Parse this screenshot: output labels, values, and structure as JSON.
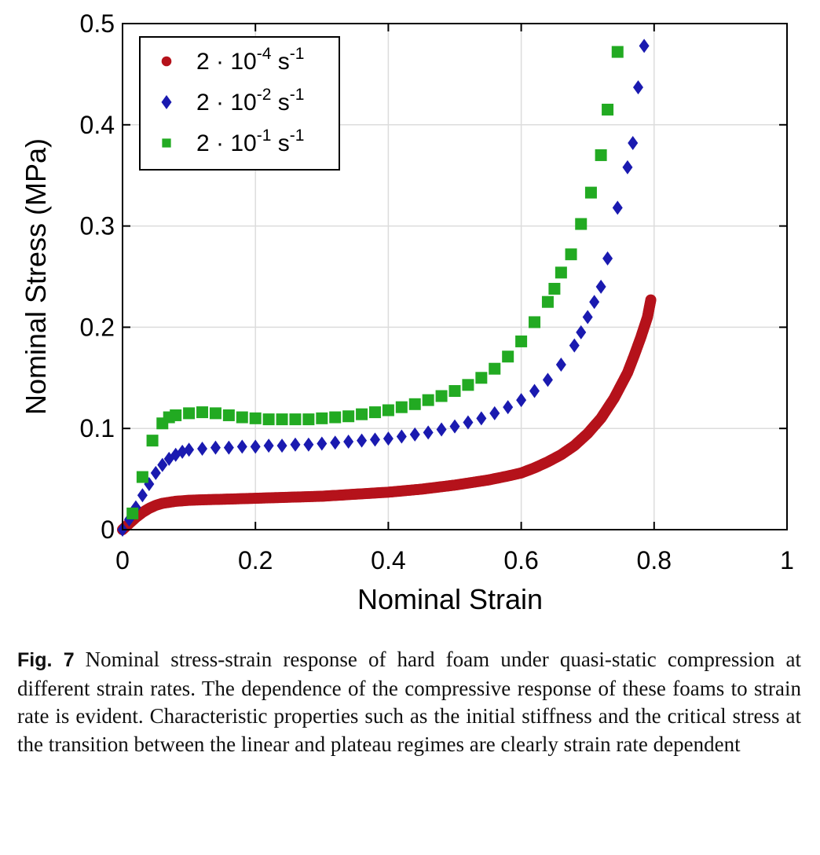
{
  "chart_data": {
    "type": "scatter",
    "title": "",
    "xlabel": "Nominal Strain",
    "ylabel": "Nominal Stress (MPa)",
    "xlim": [
      0,
      1
    ],
    "ylim": [
      0,
      0.5
    ],
    "xticks": [
      "0",
      "0.2",
      "0.4",
      "0.6",
      "0.8",
      "1"
    ],
    "yticks": [
      "0",
      "0.1",
      "0.2",
      "0.3",
      "0.4",
      "0.5"
    ],
    "grid": true,
    "legend_position": "top-left",
    "series": [
      {
        "name": "2 · 10-4 s-1",
        "base": "2 · 10",
        "exp": "-4",
        "unit": "s",
        "unit_exp": "-1",
        "marker": "circle",
        "color": "#b5121b",
        "x": [
          0.0,
          0.01,
          0.02,
          0.03,
          0.04,
          0.05,
          0.06,
          0.08,
          0.1,
          0.12,
          0.15,
          0.2,
          0.25,
          0.3,
          0.35,
          0.4,
          0.45,
          0.5,
          0.55,
          0.58,
          0.6,
          0.62,
          0.64,
          0.66,
          0.68,
          0.7,
          0.72,
          0.74,
          0.76,
          0.77,
          0.78,
          0.79,
          0.795
        ],
        "y": [
          0.0,
          0.006,
          0.012,
          0.017,
          0.021,
          0.024,
          0.026,
          0.028,
          0.029,
          0.0295,
          0.03,
          0.031,
          0.032,
          0.033,
          0.035,
          0.037,
          0.04,
          0.044,
          0.049,
          0.053,
          0.056,
          0.061,
          0.067,
          0.074,
          0.083,
          0.095,
          0.11,
          0.13,
          0.155,
          0.172,
          0.19,
          0.21,
          0.227
        ]
      },
      {
        "name": "2 · 10-2 s-1",
        "base": "2 · 10",
        "exp": "-2",
        "unit": "s",
        "unit_exp": "-1",
        "marker": "diamond",
        "color": "#1a1ab0",
        "x": [
          0.0,
          0.01,
          0.02,
          0.03,
          0.04,
          0.05,
          0.06,
          0.07,
          0.08,
          0.09,
          0.1,
          0.12,
          0.14,
          0.16,
          0.18,
          0.2,
          0.22,
          0.24,
          0.26,
          0.28,
          0.3,
          0.32,
          0.34,
          0.36,
          0.38,
          0.4,
          0.42,
          0.44,
          0.46,
          0.48,
          0.5,
          0.52,
          0.54,
          0.56,
          0.58,
          0.6,
          0.62,
          0.64,
          0.66,
          0.68,
          0.69,
          0.7,
          0.71,
          0.72,
          0.73,
          0.745,
          0.76,
          0.768,
          0.776,
          0.785
        ],
        "y": [
          0.0,
          0.01,
          0.022,
          0.034,
          0.045,
          0.056,
          0.064,
          0.07,
          0.074,
          0.077,
          0.079,
          0.08,
          0.081,
          0.081,
          0.082,
          0.082,
          0.083,
          0.083,
          0.084,
          0.084,
          0.085,
          0.086,
          0.087,
          0.088,
          0.089,
          0.09,
          0.092,
          0.094,
          0.096,
          0.099,
          0.102,
          0.106,
          0.11,
          0.115,
          0.121,
          0.128,
          0.137,
          0.148,
          0.163,
          0.182,
          0.195,
          0.21,
          0.225,
          0.24,
          0.268,
          0.318,
          0.358,
          0.382,
          0.437,
          0.478
        ]
      },
      {
        "name": "2 · 10-1 s-1",
        "base": "2 · 10",
        "exp": "-1",
        "unit": "s",
        "unit_exp": "-1",
        "marker": "square",
        "color": "#22aa22",
        "x": [
          0.015,
          0.03,
          0.045,
          0.06,
          0.07,
          0.08,
          0.1,
          0.12,
          0.14,
          0.16,
          0.18,
          0.2,
          0.22,
          0.24,
          0.26,
          0.28,
          0.3,
          0.32,
          0.34,
          0.36,
          0.38,
          0.4,
          0.42,
          0.44,
          0.46,
          0.48,
          0.5,
          0.52,
          0.54,
          0.56,
          0.58,
          0.6,
          0.62,
          0.64,
          0.65,
          0.66,
          0.675,
          0.69,
          0.705,
          0.72,
          0.73,
          0.745
        ],
        "y": [
          0.016,
          0.052,
          0.088,
          0.105,
          0.111,
          0.113,
          0.115,
          0.116,
          0.115,
          0.113,
          0.111,
          0.11,
          0.109,
          0.109,
          0.109,
          0.109,
          0.11,
          0.111,
          0.112,
          0.114,
          0.116,
          0.118,
          0.121,
          0.124,
          0.128,
          0.132,
          0.137,
          0.143,
          0.15,
          0.159,
          0.171,
          0.186,
          0.205,
          0.225,
          0.238,
          0.254,
          0.272,
          0.302,
          0.333,
          0.37,
          0.415,
          0.472
        ]
      }
    ]
  },
  "caption": {
    "label": "Fig. 7",
    "text": "Nominal stress-strain response of hard foam under quasi-static compression at different strain rates. The dependence of the compressive response of these foams to strain rate is evident. Characteristic properties such as the initial stiffness and the critical stress at the transition between the linear and plateau regimes are clearly strain rate dependent"
  }
}
